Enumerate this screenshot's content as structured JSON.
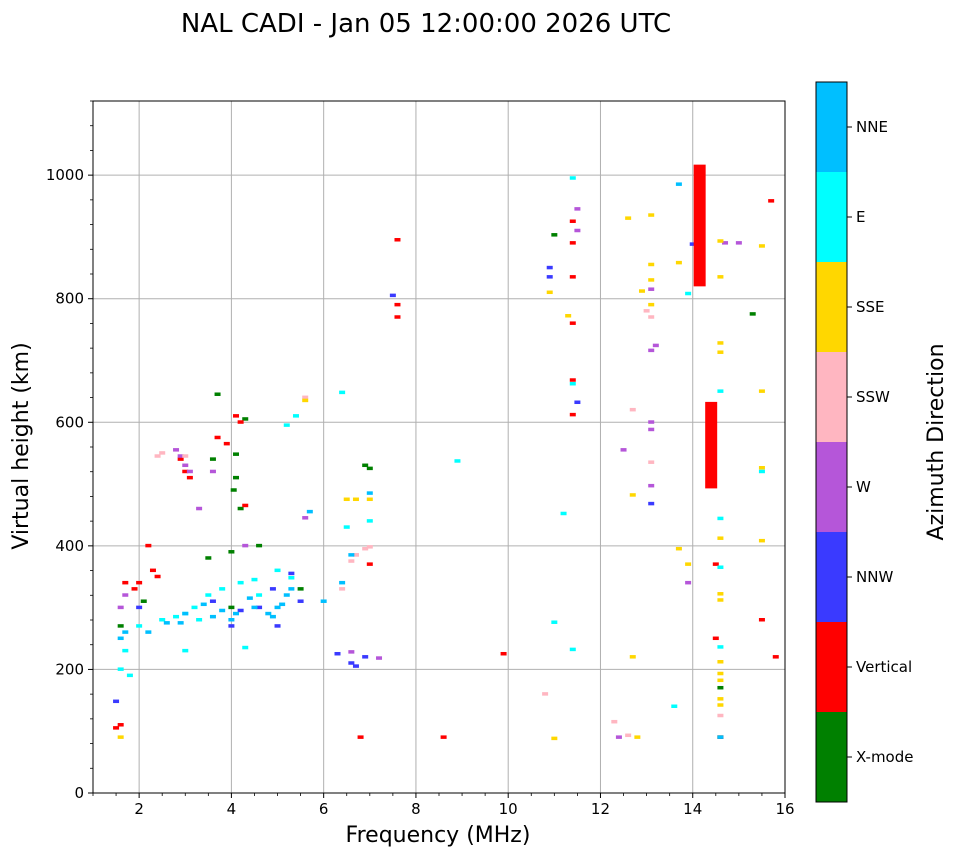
{
  "chart_data": {
    "type": "scatter",
    "title": "NAL CADI - Jan 05 12:00:00 2026 UTC",
    "xlabel": "Frequency (MHz)",
    "ylabel": "Virtual height (km)",
    "xlim": [
      1,
      16
    ],
    "ylim": [
      0,
      1120
    ],
    "xticks": [
      2,
      4,
      6,
      8,
      10,
      12,
      14,
      16
    ],
    "yticks": [
      0,
      200,
      400,
      600,
      800,
      1000
    ],
    "grid": true,
    "colorbar": {
      "label": "Azimuth Direction",
      "categories": [
        "X-mode",
        "Vertical",
        "NNW",
        "W",
        "SSW",
        "SSE",
        "E",
        "NNE"
      ],
      "colors": [
        "#008000",
        "#ff0000",
        "#3a3aff",
        "#b556d9",
        "#ffb6c1",
        "#ffd700",
        "#00ffff",
        "#00bfff"
      ]
    },
    "series": [
      {
        "name": "X-mode",
        "points": [
          [
            3.7,
            645
          ],
          [
            4.3,
            605
          ],
          [
            4.1,
            548
          ],
          [
            4.1,
            510
          ],
          [
            4.05,
            490
          ],
          [
            3.6,
            540
          ],
          [
            4.0,
            390
          ],
          [
            4.0,
            300
          ],
          [
            5.5,
            330
          ],
          [
            6.9,
            530
          ],
          [
            7.0,
            525
          ],
          [
            11.0,
            903
          ],
          [
            14.6,
            170
          ],
          [
            14.6,
            90
          ],
          [
            15.3,
            775
          ],
          [
            4.6,
            400
          ],
          [
            2.1,
            310
          ],
          [
            4.2,
            460
          ],
          [
            1.6,
            270
          ],
          [
            3.5,
            380
          ]
        ]
      },
      {
        "name": "Vertical",
        "points": [
          [
            1.5,
            105
          ],
          [
            1.6,
            110
          ],
          [
            1.9,
            330
          ],
          [
            2.0,
            340
          ],
          [
            2.3,
            360
          ],
          [
            2.4,
            350
          ],
          [
            3.7,
            575
          ],
          [
            3.9,
            565
          ],
          [
            4.1,
            610
          ],
          [
            4.2,
            600
          ],
          [
            2.9,
            540
          ],
          [
            3.0,
            520
          ],
          [
            3.1,
            510
          ],
          [
            7.0,
            370
          ],
          [
            7.6,
            895
          ],
          [
            7.6,
            790
          ],
          [
            7.6,
            770
          ],
          [
            8.6,
            90
          ],
          [
            9.9,
            225
          ],
          [
            11.4,
            925
          ],
          [
            11.4,
            890
          ],
          [
            11.4,
            835
          ],
          [
            11.4,
            760
          ],
          [
            11.4,
            668
          ],
          [
            11.4,
            612
          ],
          [
            14.5,
            370
          ],
          [
            14.5,
            250
          ],
          [
            14.6,
            90
          ],
          [
            15.5,
            280
          ],
          [
            15.7,
            958
          ],
          [
            15.8,
            220
          ],
          [
            6.8,
            90
          ],
          [
            4.3,
            465
          ],
          [
            2.2,
            400
          ],
          [
            1.7,
            340
          ]
        ]
      },
      {
        "name": "NNW",
        "points": [
          [
            1.5,
            148
          ],
          [
            2.0,
            300
          ],
          [
            4.2,
            295
          ],
          [
            4.6,
            300
          ],
          [
            5.0,
            270
          ],
          [
            5.3,
            355
          ],
          [
            6.3,
            225
          ],
          [
            6.6,
            210
          ],
          [
            6.7,
            205
          ],
          [
            6.9,
            220
          ],
          [
            7.5,
            805
          ],
          [
            10.9,
            850
          ],
          [
            10.9,
            835
          ],
          [
            13.1,
            468
          ],
          [
            14.0,
            888
          ],
          [
            11.5,
            632
          ],
          [
            3.6,
            310
          ],
          [
            4.9,
            330
          ],
          [
            5.5,
            310
          ],
          [
            4.0,
            270
          ]
        ]
      },
      {
        "name": "W",
        "points": [
          [
            1.6,
            300
          ],
          [
            1.7,
            320
          ],
          [
            2.8,
            555
          ],
          [
            2.9,
            545
          ],
          [
            3.0,
            530
          ],
          [
            3.1,
            520
          ],
          [
            3.6,
            520
          ],
          [
            4.3,
            400
          ],
          [
            6.6,
            228
          ],
          [
            7.2,
            218
          ],
          [
            12.5,
            555
          ],
          [
            12.4,
            90
          ],
          [
            13.1,
            600
          ],
          [
            13.1,
            588
          ],
          [
            13.1,
            497
          ],
          [
            13.1,
            815
          ],
          [
            13.2,
            724
          ],
          [
            13.1,
            716
          ],
          [
            13.9,
            340
          ],
          [
            14.7,
            890
          ],
          [
            15.0,
            890
          ],
          [
            11.5,
            910
          ],
          [
            11.5,
            945
          ],
          [
            3.3,
            460
          ],
          [
            5.6,
            445
          ]
        ]
      },
      {
        "name": "SSW",
        "points": [
          [
            2.4,
            545
          ],
          [
            2.5,
            550
          ],
          [
            5.6,
            640
          ],
          [
            6.4,
            330
          ],
          [
            6.6,
            375
          ],
          [
            6.7,
            385
          ],
          [
            6.9,
            395
          ],
          [
            7.0,
            398
          ],
          [
            12.3,
            115
          ],
          [
            12.7,
            620
          ],
          [
            13.1,
            535
          ],
          [
            13.1,
            770
          ],
          [
            14.6,
            125
          ],
          [
            10.8,
            160
          ],
          [
            6.7,
            385
          ],
          [
            3.0,
            545
          ],
          [
            12.6,
            93
          ],
          [
            13.0,
            780
          ]
        ]
      },
      {
        "name": "SSE",
        "points": [
          [
            1.6,
            90
          ],
          [
            6.5,
            475
          ],
          [
            6.7,
            475
          ],
          [
            7.0,
            475
          ],
          [
            10.9,
            810
          ],
          [
            11.0,
            88
          ],
          [
            11.3,
            772
          ],
          [
            12.6,
            930
          ],
          [
            12.7,
            220
          ],
          [
            12.7,
            482
          ],
          [
            12.8,
            90
          ],
          [
            12.9,
            812
          ],
          [
            13.1,
            935
          ],
          [
            13.1,
            855
          ],
          [
            13.1,
            830
          ],
          [
            13.7,
            395
          ],
          [
            13.7,
            858
          ],
          [
            13.9,
            370
          ],
          [
            14.6,
            893
          ],
          [
            14.6,
            835
          ],
          [
            14.6,
            728
          ],
          [
            14.6,
            713
          ],
          [
            14.6,
            412
          ],
          [
            14.6,
            322
          ],
          [
            14.6,
            312
          ],
          [
            14.6,
            212
          ],
          [
            14.6,
            193
          ],
          [
            14.6,
            182
          ],
          [
            14.6,
            152
          ],
          [
            14.6,
            142
          ],
          [
            15.5,
            885
          ],
          [
            15.5,
            650
          ],
          [
            15.5,
            526
          ],
          [
            15.5,
            408
          ],
          [
            5.6,
            635
          ],
          [
            13.1,
            790
          ]
        ]
      },
      {
        "name": "E",
        "points": [
          [
            1.6,
            200
          ],
          [
            1.7,
            230
          ],
          [
            1.8,
            190
          ],
          [
            2.5,
            280
          ],
          [
            2.8,
            285
          ],
          [
            3.0,
            290
          ],
          [
            3.2,
            300
          ],
          [
            3.5,
            320
          ],
          [
            3.8,
            330
          ],
          [
            4.2,
            340
          ],
          [
            4.5,
            345
          ],
          [
            5.0,
            360
          ],
          [
            5.3,
            348
          ],
          [
            5.4,
            610
          ],
          [
            5.2,
            595
          ],
          [
            4.3,
            235
          ],
          [
            3.0,
            230
          ],
          [
            6.4,
            648
          ],
          [
            6.5,
            430
          ],
          [
            7.0,
            440
          ],
          [
            8.9,
            537
          ],
          [
            11.0,
            276
          ],
          [
            11.4,
            232
          ],
          [
            11.4,
            995
          ],
          [
            11.4,
            662
          ],
          [
            11.2,
            452
          ],
          [
            13.6,
            140
          ],
          [
            13.9,
            808
          ],
          [
            14.6,
            650
          ],
          [
            14.6,
            444
          ],
          [
            14.6,
            365
          ],
          [
            14.6,
            236
          ],
          [
            15.5,
            520
          ],
          [
            2.0,
            270
          ],
          [
            3.3,
            280
          ],
          [
            4.6,
            320
          ]
        ]
      },
      {
        "name": "NNE",
        "points": [
          [
            1.6,
            250
          ],
          [
            1.7,
            260
          ],
          [
            2.2,
            260
          ],
          [
            2.6,
            275
          ],
          [
            3.0,
            290
          ],
          [
            3.4,
            305
          ],
          [
            3.8,
            295
          ],
          [
            4.1,
            290
          ],
          [
            4.5,
            300
          ],
          [
            4.8,
            290
          ],
          [
            5.1,
            305
          ],
          [
            5.3,
            330
          ],
          [
            4.9,
            285
          ],
          [
            5.0,
            300
          ],
          [
            6.0,
            310
          ],
          [
            6.4,
            340
          ],
          [
            6.6,
            385
          ],
          [
            5.7,
            455
          ],
          [
            7.0,
            485
          ],
          [
            13.7,
            985
          ],
          [
            14.6,
            90
          ],
          [
            4.4,
            315
          ],
          [
            3.6,
            285
          ],
          [
            5.2,
            320
          ],
          [
            2.9,
            275
          ],
          [
            4.0,
            280
          ]
        ]
      }
    ],
    "bars": [
      {
        "name": "Vertical",
        "x": 14.15,
        "y_from": 820,
        "y_to": 1017
      },
      {
        "name": "Vertical",
        "x": 14.4,
        "y_from": 493,
        "y_to": 633
      }
    ]
  }
}
